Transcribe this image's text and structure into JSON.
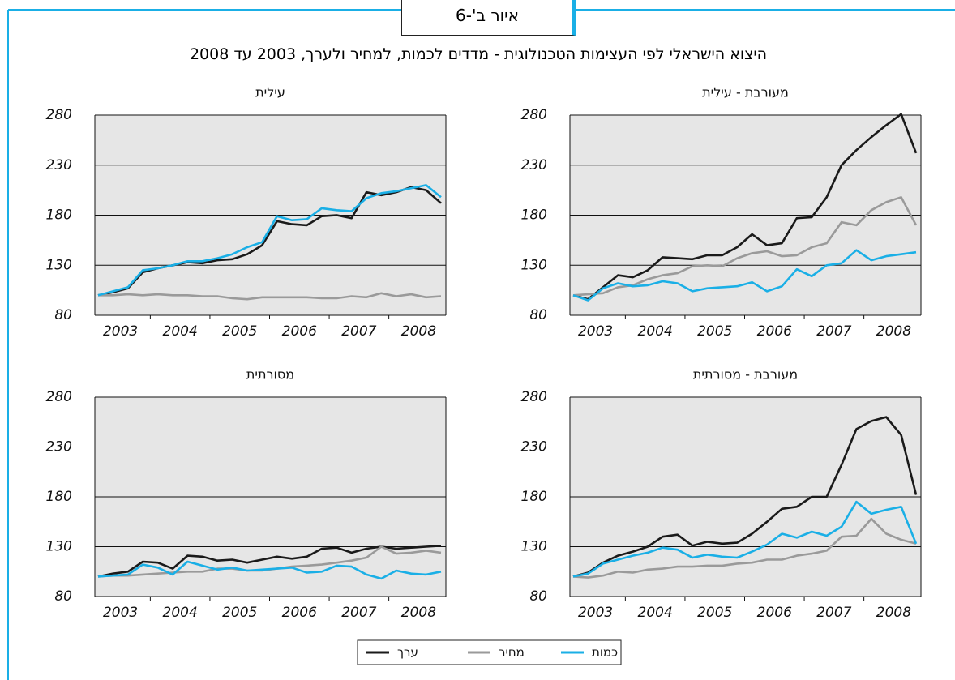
{
  "figure_label": "איור ב'-6",
  "title": "היצוא הישראלי לפי העצימות הטכנולוגית - מדדים לכמות, למחיר ולערך, 2003 עד 2008",
  "chart_data": [
    {
      "type": "line",
      "title": "עילית",
      "categories": [
        null,
        "2003",
        null,
        null,
        null,
        "2004",
        null,
        null,
        null,
        "2005",
        null,
        null,
        null,
        "2006",
        null,
        null,
        null,
        "2007",
        null,
        null,
        null,
        "2008",
        null,
        null
      ],
      "ylim": [
        80,
        280
      ],
      "yticks": [
        80,
        130,
        180,
        230,
        280
      ],
      "series": [
        {
          "name": "ערך",
          "color": "#1a1a1a",
          "values": [
            100,
            103,
            107,
            123,
            127,
            130,
            133,
            132,
            135,
            136,
            141,
            150,
            174,
            171,
            170,
            179,
            180,
            177,
            203,
            200,
            203,
            208,
            205,
            192
          ]
        },
        {
          "name": "מחיר",
          "color": "#9a9a9a",
          "values": [
            100,
            100,
            101,
            100,
            101,
            100,
            100,
            99,
            99,
            97,
            96,
            98,
            98,
            98,
            98,
            97,
            97,
            99,
            98,
            102,
            99,
            101,
            98,
            99
          ]
        },
        {
          "name": "כמות",
          "color": "#1aafe6",
          "values": [
            100,
            104,
            108,
            125,
            127,
            130,
            134,
            134,
            137,
            141,
            148,
            153,
            179,
            175,
            176,
            187,
            185,
            184,
            197,
            202,
            204,
            207,
            210,
            198
          ]
        }
      ]
    },
    {
      "type": "line",
      "title": "מעורבת - עילית",
      "categories": [
        null,
        "2003",
        null,
        null,
        null,
        "2004",
        null,
        null,
        null,
        "2005",
        null,
        null,
        null,
        "2006",
        null,
        null,
        null,
        "2007",
        null,
        null,
        null,
        "2008",
        null,
        null
      ],
      "ylim": [
        80,
        280
      ],
      "yticks": [
        80,
        130,
        180,
        230,
        280
      ],
      "series": [
        {
          "name": "ערך",
          "color": "#1a1a1a",
          "values": [
            100,
            96,
            108,
            120,
            118,
            125,
            138,
            137,
            136,
            140,
            140,
            148,
            161,
            150,
            152,
            177,
            178,
            198,
            230,
            245,
            258,
            270,
            281,
            242
          ]
        },
        {
          "name": "מחיר",
          "color": "#9a9a9a",
          "values": [
            100,
            101,
            102,
            108,
            110,
            116,
            120,
            122,
            129,
            130,
            129,
            137,
            142,
            144,
            139,
            140,
            148,
            152,
            173,
            170,
            185,
            193,
            198,
            170
          ]
        },
        {
          "name": "כמות",
          "color": "#1aafe6",
          "values": [
            100,
            95,
            107,
            112,
            109,
            110,
            114,
            112,
            104,
            107,
            108,
            109,
            113,
            104,
            109,
            126,
            119,
            130,
            132,
            145,
            135,
            139,
            141,
            143
          ]
        }
      ]
    },
    {
      "type": "line",
      "title": "מסורתית",
      "categories": [
        null,
        "2003",
        null,
        null,
        null,
        "2004",
        null,
        null,
        null,
        "2005",
        null,
        null,
        null,
        "2006",
        null,
        null,
        null,
        "2007",
        null,
        null,
        null,
        "2008",
        null,
        null
      ],
      "ylim": [
        80,
        280
      ],
      "yticks": [
        80,
        130,
        180,
        230,
        280
      ],
      "series": [
        {
          "name": "ערך",
          "color": "#1a1a1a",
          "values": [
            100,
            103,
            105,
            115,
            114,
            108,
            121,
            120,
            116,
            117,
            114,
            117,
            120,
            118,
            120,
            128,
            129,
            124,
            128,
            130,
            128,
            129,
            130,
            131
          ]
        },
        {
          "name": "מחיר",
          "color": "#9a9a9a",
          "values": [
            100,
            101,
            101,
            102,
            103,
            104,
            105,
            105,
            108,
            108,
            106,
            106,
            108,
            110,
            111,
            112,
            114,
            116,
            119,
            130,
            123,
            124,
            126,
            124
          ]
        },
        {
          "name": "כמות",
          "color": "#1aafe6",
          "values": [
            100,
            101,
            102,
            112,
            109,
            102,
            115,
            111,
            107,
            109,
            106,
            107,
            108,
            109,
            104,
            105,
            111,
            110,
            102,
            98,
            106,
            103,
            102,
            105
          ]
        }
      ]
    },
    {
      "type": "line",
      "title": "מעורבת - מסורתית",
      "categories": [
        null,
        "2003",
        null,
        null,
        null,
        "2004",
        null,
        null,
        null,
        "2005",
        null,
        null,
        null,
        "2006",
        null,
        null,
        null,
        "2007",
        null,
        null,
        null,
        "2008",
        null,
        null
      ],
      "ylim": [
        80,
        280
      ],
      "yticks": [
        80,
        130,
        180,
        230,
        280
      ],
      "series": [
        {
          "name": "ערך",
          "color": "#1a1a1a",
          "values": [
            100,
            104,
            114,
            121,
            125,
            130,
            140,
            142,
            131,
            135,
            133,
            134,
            143,
            155,
            168,
            170,
            180,
            180,
            212,
            248,
            256,
            260,
            242,
            182
          ]
        },
        {
          "name": "מחיר",
          "color": "#9a9a9a",
          "values": [
            100,
            99,
            101,
            105,
            104,
            107,
            108,
            110,
            110,
            111,
            111,
            113,
            114,
            117,
            117,
            121,
            123,
            126,
            140,
            141,
            158,
            143,
            137,
            133
          ]
        },
        {
          "name": "כמות",
          "color": "#1aafe6",
          "values": [
            100,
            103,
            113,
            117,
            121,
            124,
            129,
            127,
            119,
            122,
            120,
            119,
            125,
            132,
            143,
            139,
            145,
            141,
            150,
            175,
            163,
            167,
            170,
            133
          ]
        }
      ]
    }
  ]
}
